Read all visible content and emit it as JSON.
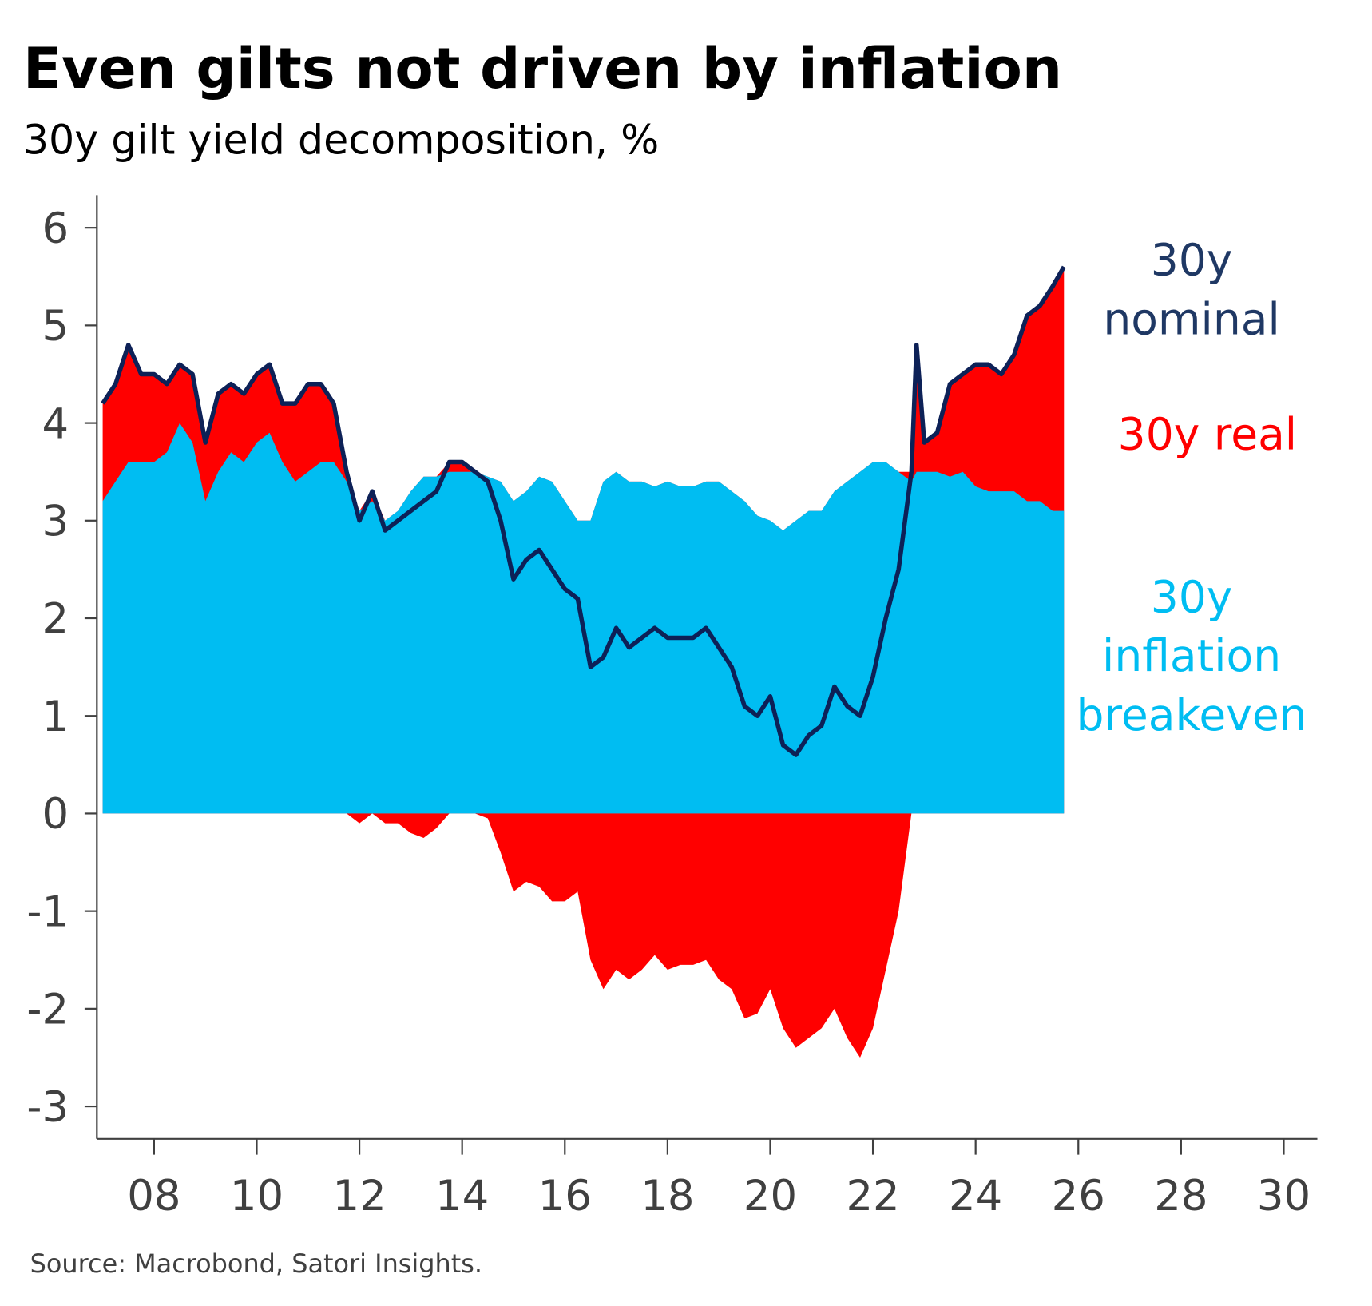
{
  "chart_data": {
    "type": "area",
    "title": "Even gilts not driven by inflation",
    "subtitle": "30y gilt yield decomposition, %",
    "source": "Source: Macrobond, Satori Insights.",
    "xlabel": "",
    "ylabel": "",
    "xlim": [
      2006.94,
      2031.2
    ],
    "ylim": [
      -3.3,
      6.3
    ],
    "y_ticks": [
      6,
      5,
      4,
      3,
      2,
      1,
      0,
      -1,
      -2,
      -3
    ],
    "y_tick_labels": [
      "6",
      "5",
      "4",
      "3",
      "2",
      "1",
      "0",
      "-1",
      "-2",
      "-3"
    ],
    "x_ticks": [
      2008,
      2010,
      2012,
      2014,
      2016,
      2018,
      2020,
      2022,
      2024,
      2026,
      2028,
      2030
    ],
    "x_tick_labels": [
      "08",
      "10",
      "12",
      "14",
      "16",
      "18",
      "20",
      "22",
      "24",
      "26",
      "28",
      "30"
    ],
    "colors": {
      "nominal": "#0d2157",
      "real": "#ff0000",
      "breakeven": "#00bdf2",
      "nominal_label": "#1f3864"
    },
    "legend": {
      "nominal": [
        "30y",
        "nominal"
      ],
      "real": [
        "30y real"
      ],
      "breakeven": [
        "30y",
        "inflation",
        "breakeven"
      ]
    },
    "x": [
      2007.0,
      2007.25,
      2007.5,
      2007.75,
      2008.0,
      2008.25,
      2008.5,
      2008.75,
      2009.0,
      2009.25,
      2009.5,
      2009.75,
      2010.0,
      2010.25,
      2010.5,
      2010.75,
      2011.0,
      2011.25,
      2011.5,
      2011.75,
      2012.0,
      2012.25,
      2012.5,
      2012.75,
      2013.0,
      2013.25,
      2013.5,
      2013.75,
      2014.0,
      2014.25,
      2014.5,
      2014.75,
      2015.0,
      2015.25,
      2015.5,
      2015.75,
      2016.0,
      2016.25,
      2016.5,
      2016.75,
      2017.0,
      2017.25,
      2017.5,
      2017.75,
      2018.0,
      2018.25,
      2018.5,
      2018.75,
      2019.0,
      2019.25,
      2019.5,
      2019.75,
      2020.0,
      2020.25,
      2020.5,
      2020.75,
      2021.0,
      2021.25,
      2021.5,
      2021.75,
      2022.0,
      2022.25,
      2022.5,
      2022.75,
      2022.85,
      2023.0,
      2023.25,
      2023.5,
      2023.75,
      2024.0,
      2024.25,
      2024.5,
      2024.75,
      2025.0,
      2025.25,
      2025.5,
      2025.72
    ],
    "series": [
      {
        "name": "30y nominal",
        "values": [
          4.2,
          4.4,
          4.8,
          4.5,
          4.5,
          4.4,
          4.6,
          4.5,
          3.8,
          4.3,
          4.4,
          4.3,
          4.5,
          4.6,
          4.2,
          4.2,
          4.4,
          4.4,
          4.2,
          3.5,
          3.0,
          3.3,
          2.9,
          3.0,
          3.1,
          3.2,
          3.3,
          3.6,
          3.6,
          3.5,
          3.4,
          3.0,
          2.4,
          2.6,
          2.7,
          2.5,
          2.3,
          2.2,
          1.5,
          1.6,
          1.9,
          1.7,
          1.8,
          1.9,
          1.8,
          1.8,
          1.8,
          1.9,
          1.7,
          1.5,
          1.1,
          1.0,
          1.2,
          0.7,
          0.6,
          0.8,
          0.9,
          1.3,
          1.1,
          1.0,
          1.4,
          2.0,
          2.5,
          3.5,
          4.8,
          3.8,
          3.9,
          4.4,
          4.5,
          4.6,
          4.6,
          4.5,
          4.7,
          5.1,
          5.2,
          5.4,
          5.6
        ]
      },
      {
        "name": "30y inflation breakeven",
        "values": [
          3.2,
          3.4,
          3.6,
          3.6,
          3.6,
          3.7,
          4.0,
          3.8,
          3.2,
          3.5,
          3.7,
          3.6,
          3.8,
          3.9,
          3.6,
          3.4,
          3.5,
          3.6,
          3.6,
          3.4,
          3.1,
          3.2,
          3.0,
          3.1,
          3.3,
          3.45,
          3.45,
          3.5,
          3.5,
          3.5,
          3.45,
          3.4,
          3.2,
          3.3,
          3.45,
          3.4,
          3.2,
          3.0,
          3.0,
          3.4,
          3.5,
          3.4,
          3.4,
          3.35,
          3.4,
          3.35,
          3.35,
          3.4,
          3.4,
          3.3,
          3.2,
          3.05,
          3.0,
          2.9,
          3.0,
          3.1,
          3.1,
          3.3,
          3.4,
          3.5,
          3.6,
          3.6,
          3.5,
          3.4,
          3.5,
          3.5,
          3.5,
          3.45,
          3.5,
          3.35,
          3.3,
          3.3,
          3.3,
          3.2,
          3.2,
          3.1,
          3.1
        ]
      }
    ]
  }
}
